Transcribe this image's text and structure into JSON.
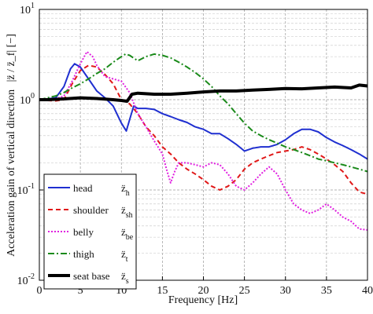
{
  "chart_data": {
    "type": "line",
    "title": "",
    "xlabel": "Frequency [Hz]",
    "ylabel": "Acceleration gain of vertical direction",
    "ylabel_suffix": "|z̈ / z̈_f| [−]",
    "xlim": [
      0,
      40
    ],
    "ylim": [
      0.01,
      10
    ],
    "yscale": "log",
    "grid": true,
    "legend_position": "bottom-left",
    "x_ticks": [
      0,
      5,
      10,
      15,
      20,
      25,
      30,
      35,
      40
    ],
    "x_tick_labels": [
      "0",
      "5",
      "10",
      "15",
      "20",
      "25",
      "30",
      "35",
      "40"
    ],
    "y_ticks": [
      0.01,
      0.1,
      1,
      10
    ],
    "y_tick_labels": [
      {
        "base": "10",
        "exp": "-2"
      },
      {
        "base": "10",
        "exp": "-1"
      },
      {
        "base": "10",
        "exp": "0"
      },
      {
        "base": "10",
        "exp": "1"
      }
    ],
    "series": [
      {
        "name": "head",
        "symbol": "z̈",
        "symbol_sub": "h",
        "color": "#1f2fd0",
        "dash": "solid",
        "width": 2,
        "points": [
          [
            0,
            1.0
          ],
          [
            1,
            1.02
          ],
          [
            2,
            1.05
          ],
          [
            3,
            1.4
          ],
          [
            3.8,
            2.2
          ],
          [
            4.3,
            2.5
          ],
          [
            5,
            2.3
          ],
          [
            6,
            1.7
          ],
          [
            7,
            1.25
          ],
          [
            8,
            1.05
          ],
          [
            9,
            0.85
          ],
          [
            10,
            0.55
          ],
          [
            10.6,
            0.45
          ],
          [
            11,
            0.6
          ],
          [
            11.5,
            0.85
          ],
          [
            12,
            0.8
          ],
          [
            13,
            0.8
          ],
          [
            14,
            0.78
          ],
          [
            15,
            0.7
          ],
          [
            16,
            0.65
          ],
          [
            17,
            0.6
          ],
          [
            18,
            0.56
          ],
          [
            19,
            0.5
          ],
          [
            20,
            0.47
          ],
          [
            21,
            0.42
          ],
          [
            22,
            0.42
          ],
          [
            23,
            0.37
          ],
          [
            24,
            0.32
          ],
          [
            25,
            0.27
          ],
          [
            26,
            0.29
          ],
          [
            27,
            0.3
          ],
          [
            28,
            0.3
          ],
          [
            29,
            0.32
          ],
          [
            30,
            0.36
          ],
          [
            31,
            0.42
          ],
          [
            32,
            0.47
          ],
          [
            33,
            0.47
          ],
          [
            34,
            0.44
          ],
          [
            35,
            0.38
          ],
          [
            36,
            0.34
          ],
          [
            37,
            0.31
          ],
          [
            38,
            0.28
          ],
          [
            39,
            0.25
          ],
          [
            40,
            0.22
          ]
        ]
      },
      {
        "name": "shoulder",
        "symbol": "z̈",
        "symbol_sub": "sh",
        "color": "#e01818",
        "dash": "6,4",
        "width": 2,
        "points": [
          [
            0,
            1.0
          ],
          [
            1,
            0.98
          ],
          [
            2,
            0.97
          ],
          [
            3,
            1.0
          ],
          [
            4,
            1.5
          ],
          [
            5,
            2.1
          ],
          [
            6,
            2.4
          ],
          [
            7,
            2.3
          ],
          [
            8,
            1.9
          ],
          [
            9,
            1.5
          ],
          [
            10,
            1.0
          ],
          [
            11,
            0.9
          ],
          [
            12,
            0.7
          ],
          [
            13,
            0.5
          ],
          [
            14,
            0.4
          ],
          [
            15,
            0.3
          ],
          [
            16,
            0.25
          ],
          [
            17,
            0.2
          ],
          [
            18,
            0.17
          ],
          [
            19,
            0.15
          ],
          [
            20,
            0.13
          ],
          [
            21,
            0.11
          ],
          [
            22,
            0.1
          ],
          [
            23,
            0.11
          ],
          [
            24,
            0.13
          ],
          [
            25,
            0.17
          ],
          [
            26,
            0.2
          ],
          [
            27,
            0.22
          ],
          [
            28,
            0.24
          ],
          [
            29,
            0.26
          ],
          [
            30,
            0.27
          ],
          [
            31,
            0.28
          ],
          [
            32,
            0.3
          ],
          [
            33,
            0.28
          ],
          [
            34,
            0.25
          ],
          [
            35,
            0.22
          ],
          [
            36,
            0.19
          ],
          [
            37,
            0.16
          ],
          [
            38,
            0.12
          ],
          [
            39,
            0.095
          ],
          [
            40,
            0.09
          ]
        ]
      },
      {
        "name": "belly",
        "symbol": "z̈",
        "symbol_sub": "be",
        "color": "#e020e0",
        "dash": "2,2",
        "width": 2,
        "points": [
          [
            0,
            1.0
          ],
          [
            1,
            1.0
          ],
          [
            2,
            1.02
          ],
          [
            3,
            1.1
          ],
          [
            4,
            1.6
          ],
          [
            5,
            2.5
          ],
          [
            5.8,
            3.4
          ],
          [
            6.5,
            3.0
          ],
          [
            7,
            2.4
          ],
          [
            8,
            1.8
          ],
          [
            9,
            1.7
          ],
          [
            10,
            1.6
          ],
          [
            11,
            1.2
          ],
          [
            12,
            0.7
          ],
          [
            13,
            0.5
          ],
          [
            14,
            0.35
          ],
          [
            15,
            0.25
          ],
          [
            15.5,
            0.17
          ],
          [
            16,
            0.12
          ],
          [
            16.5,
            0.16
          ],
          [
            17,
            0.2
          ],
          [
            18,
            0.2
          ],
          [
            19,
            0.19
          ],
          [
            20,
            0.18
          ],
          [
            21,
            0.2
          ],
          [
            22,
            0.19
          ],
          [
            23,
            0.15
          ],
          [
            24,
            0.11
          ],
          [
            25,
            0.1
          ],
          [
            26,
            0.12
          ],
          [
            27,
            0.15
          ],
          [
            28,
            0.18
          ],
          [
            29,
            0.15
          ],
          [
            30,
            0.1
          ],
          [
            31,
            0.07
          ],
          [
            32,
            0.06
          ],
          [
            33,
            0.055
          ],
          [
            34,
            0.06
          ],
          [
            35,
            0.07
          ],
          [
            36,
            0.06
          ],
          [
            37,
            0.05
          ],
          [
            38,
            0.045
          ],
          [
            39,
            0.037
          ],
          [
            40,
            0.036
          ]
        ]
      },
      {
        "name": "thigh",
        "symbol": "z̈",
        "symbol_sub": "t",
        "color": "#1a8a1a",
        "dash": "8,3,2,3",
        "width": 2,
        "points": [
          [
            0,
            1.0
          ],
          [
            1,
            1.05
          ],
          [
            2,
            1.1
          ],
          [
            3,
            1.2
          ],
          [
            4,
            1.35
          ],
          [
            5,
            1.5
          ],
          [
            6,
            1.7
          ],
          [
            7,
            1.95
          ],
          [
            8,
            2.2
          ],
          [
            9,
            2.6
          ],
          [
            10,
            3.0
          ],
          [
            10.5,
            3.2
          ],
          [
            11,
            3.1
          ],
          [
            12,
            2.7
          ],
          [
            13,
            3.0
          ],
          [
            14,
            3.2
          ],
          [
            15,
            3.1
          ],
          [
            16,
            2.9
          ],
          [
            17,
            2.6
          ],
          [
            18,
            2.3
          ],
          [
            19,
            2.0
          ],
          [
            20,
            1.7
          ],
          [
            21,
            1.4
          ],
          [
            22,
            1.1
          ],
          [
            23,
            0.9
          ],
          [
            24,
            0.7
          ],
          [
            25,
            0.55
          ],
          [
            26,
            0.45
          ],
          [
            27,
            0.4
          ],
          [
            28,
            0.36
          ],
          [
            29,
            0.33
          ],
          [
            30,
            0.3
          ],
          [
            31,
            0.28
          ],
          [
            32,
            0.26
          ],
          [
            33,
            0.24
          ],
          [
            34,
            0.22
          ],
          [
            35,
            0.21
          ],
          [
            36,
            0.2
          ],
          [
            37,
            0.19
          ],
          [
            38,
            0.18
          ],
          [
            39,
            0.17
          ],
          [
            40,
            0.16
          ]
        ]
      },
      {
        "name": "seat base",
        "symbol": "z̈",
        "symbol_sub": "s",
        "color": "#000000",
        "dash": "solid",
        "width": 4,
        "points": [
          [
            0,
            1.0
          ],
          [
            1,
            1.0
          ],
          [
            3,
            1.02
          ],
          [
            5,
            1.05
          ],
          [
            7,
            1.03
          ],
          [
            9,
            1.0
          ],
          [
            10,
            0.98
          ],
          [
            10.7,
            0.96
          ],
          [
            11.3,
            1.15
          ],
          [
            12,
            1.18
          ],
          [
            14,
            1.15
          ],
          [
            16,
            1.15
          ],
          [
            18,
            1.18
          ],
          [
            20,
            1.22
          ],
          [
            22,
            1.25
          ],
          [
            24,
            1.25
          ],
          [
            26,
            1.28
          ],
          [
            28,
            1.3
          ],
          [
            30,
            1.33
          ],
          [
            32,
            1.32
          ],
          [
            34,
            1.35
          ],
          [
            36,
            1.38
          ],
          [
            38,
            1.35
          ],
          [
            39,
            1.45
          ],
          [
            40,
            1.42
          ]
        ]
      }
    ]
  }
}
